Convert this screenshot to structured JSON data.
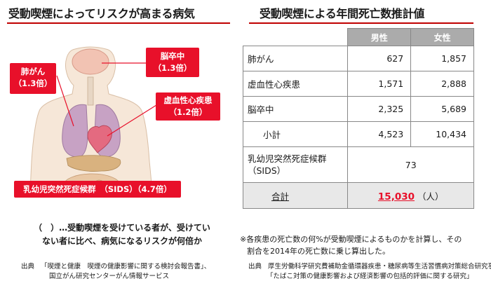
{
  "left": {
    "title": "受動喫煙によってリスクが高まる病気",
    "callouts": {
      "lung_name": "肺がん",
      "lung_ratio": "（1.3倍）",
      "stroke_name": "脳卒中",
      "stroke_ratio": "（1.3倍）",
      "heart_name": "虚血性心疾患",
      "heart_ratio": "（1.2倍）",
      "sids": "乳幼児突然死症候群　（SIDS）（4.7倍）"
    },
    "note_line1": "（　）…受動喫煙を受けている者が、受けてい",
    "note_line2": "ない者に比べ、病気になるリスクが何倍か",
    "source_label": "出典",
    "source_line1": "「喫煙と健康　喫煙の健康影響に関する検討会報告書」、",
    "source_line2": "国立がん研究センターがん情報サービス"
  },
  "right": {
    "title": "受動喫煙による年間死亡数推計値",
    "table": {
      "headers": [
        "男性",
        "女性"
      ],
      "rows": [
        {
          "label": "肺がん",
          "male": "627",
          "female": "1,857"
        },
        {
          "label": "虚血性心疾患",
          "male": "1,571",
          "female": "2,888"
        },
        {
          "label": "脳卒中",
          "male": "2,325",
          "female": "5,689"
        },
        {
          "label": "小計",
          "male": "4,523",
          "female": "10,434"
        }
      ],
      "sids_label_line1": "乳幼児突然死症候群",
      "sids_label_line2": "（SIDS）",
      "sids_value": "73",
      "total_label": "合計",
      "total_value": "15,030",
      "total_unit": "（人）"
    },
    "note_line1": "※各疾患の死亡数の何%が受動喫煙によるものかを計算し、その",
    "note_line2": "割合を2014年の死亡数に乗じ算出した。",
    "source_label": "出典",
    "source_line1": "厚生労働科学研究費補助金循環器疾患・糖尿病等生活習慣病対策総合研究事業",
    "source_line2": "「たばこ対策の健康影響および経済影響の包括的評価に関する研究」"
  },
  "colors": {
    "accent_red": "#e8102a",
    "header_gray": "#ababab",
    "total_row_bg": "#e8e8e8"
  }
}
